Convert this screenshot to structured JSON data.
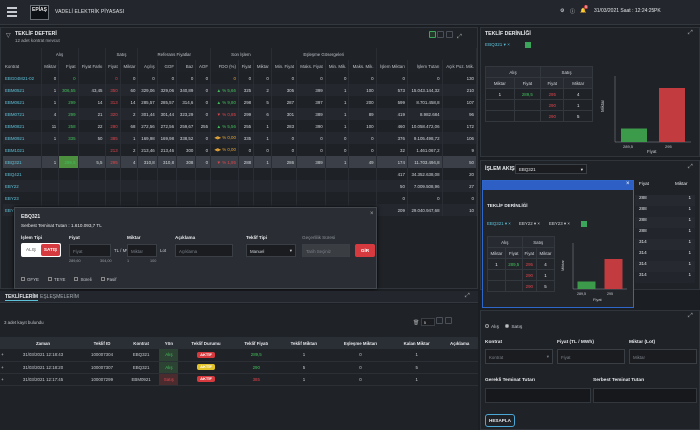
{
  "app": {
    "logo_lines": [
      "EPİAŞ",
      ""
    ],
    "title": "VADELİ ELEKTRİK PİYASASI",
    "notif_count": "5",
    "datetime": "31/03/2021 Saat : 12:24:25",
    "user": "PK"
  },
  "offer_book": {
    "title": "TEKLİF DEFTERİ",
    "subtitle": "12 adet kontrat mevcut",
    "group_headers": {
      "alis": "Alış",
      "satis": "Satış",
      "ref": "Referans Fiyatlar",
      "son_islem": "Son İşlem",
      "eslesme": "Eşleşme Gösergeleri"
    },
    "columns": [
      "Kontrat",
      "Miktar",
      "Fiyat",
      "Fiyat Farkı",
      "Fiyat",
      "Miktar",
      "Açılış",
      "GOF",
      "Baz",
      "AOF",
      "FDO (%)",
      "Fiyat",
      "Miktar",
      "Min. Fiyat",
      "Maks. Fiyat",
      "Min. Mik.",
      "Maks. Mik.",
      "İşlem Miktarı",
      "İşlem Tutarı",
      "Açık Poz. Mik."
    ],
    "rows": [
      {
        "k": "EBG04M21-02",
        "c": [
          "0",
          "0",
          "",
          "0",
          "0",
          "0",
          "0",
          "0",
          "0",
          "0",
          "0",
          "0",
          "0",
          "0",
          "0",
          "0",
          "0",
          "0",
          "130"
        ]
      },
      {
        "k": "EBM0521",
        "c": [
          "1",
          "306,55",
          "43,45",
          "350",
          "60",
          "329,06",
          "329,06",
          "340,89",
          "0",
          "▲ % 5,66",
          "325",
          "2",
          "305",
          "399",
          "1",
          "100",
          "573",
          "15.043.144,32",
          "210"
        ]
      },
      {
        "k": "EBM0621",
        "c": [
          "1",
          "299",
          "14",
          "313",
          "14",
          "285,57",
          "285,57",
          "314,6",
          "0",
          "▲ % 9,80",
          "298",
          "5",
          "287",
          "397",
          "1",
          "200",
          "599",
          "8.701.458,8",
          "107"
        ]
      },
      {
        "k": "EBM0721",
        "c": [
          "4",
          "299",
          "21",
          "320",
          "2",
          "301,44",
          "301,44",
          "323,29",
          "0",
          "▼ % 0,85",
          "299",
          "6",
          "301",
          "389",
          "1",
          "89",
          "419",
          "8.982.684",
          "96"
        ]
      },
      {
        "k": "EBM0821",
        "c": [
          "11",
          "258",
          "22",
          "280",
          "68",
          "272,56",
          "272,56",
          "259,67",
          "255",
          "▲ % 5,56",
          "255",
          "1",
          "283",
          "390",
          "1",
          "100",
          "460",
          "10.058.472,06",
          "172"
        ]
      },
      {
        "k": "EBM0921",
        "c": [
          "1",
          "335",
          "50",
          "385",
          "1",
          "169,98",
          "169,98",
          "338,52",
          "0",
          "◀▶ % 0,00",
          "335",
          "1",
          "0",
          "0",
          "0",
          "0",
          "376",
          "9.105.498,72",
          "106"
        ]
      },
      {
        "k": "EBM1021",
        "c": [
          "",
          "",
          "",
          "213",
          "2",
          "213,46",
          "213,46",
          "300",
          "0",
          "◀▶ % 0,00",
          "0",
          "0",
          "0",
          "0",
          "0",
          "0",
          "32",
          "1.461.067,2",
          "9"
        ]
      },
      {
        "k": "EBQ321",
        "c": [
          "1",
          "289,5",
          "5,5",
          "295",
          "4",
          "310,8",
          "310,8",
          "308",
          "0",
          "▼ % 1,95",
          "288",
          "1",
          "286",
          "389",
          "1",
          "49",
          "174",
          "11.703.494,8",
          "50"
        ]
      },
      {
        "k": "EBQ421",
        "c": [
          "",
          "",
          "",
          "",
          "",
          "",
          "",
          "",
          "",
          "",
          "",
          "",
          "",
          "",
          "",
          "",
          "417",
          "34.352.638,08",
          "20"
        ]
      },
      {
        "k": "EBY22",
        "c": [
          "",
          "",
          "",
          "",
          "",
          "",
          "",
          "",
          "",
          "",
          "",
          "",
          "",
          "",
          "",
          "",
          "50",
          "7.009.508,96",
          "27"
        ]
      },
      {
        "k": "EBY23",
        "c": [
          "",
          "",
          "",
          "",
          "",
          "",
          "",
          "",
          "",
          "",
          "",
          "",
          "",
          "",
          "",
          "",
          "0",
          "0",
          "0"
        ]
      },
      {
        "k": "EBY24",
        "c": [
          "",
          "",
          "",
          "",
          "",
          "",
          "",
          "",
          "",
          "",
          "",
          "",
          "",
          "",
          "",
          "",
          "209",
          "29.040.947,68",
          "10"
        ]
      }
    ]
  },
  "dialog": {
    "contract": "EBQ321",
    "collateral_label": "Serbest Teminat Tutarı : 1.610.093,7 TL",
    "islem_tipi_label": "İşlem Tipi",
    "alis": "ALIŞ",
    "satis": "SATIŞ",
    "fiyat_label": "Fiyat",
    "fiyat_placeholder": "Fiyat",
    "fiyat_unit": "TL / MWh",
    "fiyat_hint_left": "289,60",
    "fiyat_hint_right": "304,00",
    "miktar_label": "Miktar",
    "miktar_placeholder": "Miktar",
    "miktar_unit": "Lot",
    "miktar_hint_left": "1",
    "miktar_hint_right": "100",
    "aciklama_label": "Açıklama",
    "aciklama_placeholder": "Açıklama",
    "teklif_tipi_label": "Teklif Tipi",
    "teklif_tipi_value": "Manuel",
    "gecerlilik_label": "Geçerlilik Süresi",
    "gecerlilik_placeholder": "Tarih Seçiniz",
    "gir_button": "GİR",
    "checks": [
      "GFYE",
      "TEYE",
      "Süreli",
      "Pasif"
    ]
  },
  "bottom_tabs": {
    "tab1": "TEKLİFLERİM",
    "tab2": "EŞLEŞMELERİM"
  },
  "orders": {
    "count_label": "3 adet kayıt bulundu",
    "page_size": "5",
    "columns": [
      "Zaman",
      "Teklif ID",
      "Kontrat",
      "Yön",
      "Teklif Durumu",
      "Teklif Fiyatı",
      "Teklif Miktarı",
      "Eşleşme Miktarı",
      "Kalan Miktar",
      "Açıklama"
    ],
    "rows": [
      {
        "time": "31/03/2021 12:18:43",
        "id": "100007304",
        "kontrat": "EBQ321",
        "yon": "Alış",
        "yon_class": "green",
        "durum": "AKTİF",
        "durum_color": "#d63a3e",
        "fiyat": "289,5",
        "miktar": "1",
        "esl": "0",
        "kalan": "1"
      },
      {
        "time": "31/03/2021 12:18:20",
        "id": "100007307",
        "kontrat": "EBQ321",
        "yon": "Alış",
        "yon_class": "green",
        "durum": "AKTİF",
        "durum_color": "#e2c42a",
        "fiyat": "290",
        "miktar": "5",
        "esl": "0",
        "kalan": "5"
      },
      {
        "time": "31/03/2021 12:17:45",
        "id": "100007299",
        "kontrat": "EBM0921",
        "yon": "Satış",
        "yon_class": "red",
        "durum": "AKTİF",
        "durum_color": "#d63a3e",
        "fiyat": "385",
        "miktar": "1",
        "esl": "0",
        "kalan": "1"
      }
    ]
  },
  "depth": {
    "title": "TEKLİF DERİNLİĞİ",
    "contract": "EBQ321",
    "headers": {
      "alis": "Alış",
      "satis": "Satış",
      "miktar": "Miktar",
      "fiyat": "Fiyat"
    },
    "rows": [
      {
        "am": "1",
        "af": "289,5",
        "sf": "295",
        "sm": "4"
      },
      {
        "am": "",
        "af": "",
        "sf": "290",
        "sm": "1"
      },
      {
        "am": "",
        "af": "",
        "sf": "290",
        "sm": "5"
      }
    ],
    "chart_labels": {
      "y": "Miktar",
      "x": "Fiyat",
      "x1": "289,5",
      "x2": "295"
    }
  },
  "chart_data": {
    "type": "bar",
    "categories": [
      "289,5",
      "295"
    ],
    "series": [
      {
        "name": "Alış",
        "values": [
          1,
          0
        ],
        "color": "#3c9b4b"
      },
      {
        "name": "Satış",
        "values": [
          0,
          4
        ],
        "color": "#c23c3f"
      }
    ],
    "xlabel": "Fiyat",
    "ylabel": "Miktar"
  },
  "flow": {
    "title": "İŞLEM AKIŞI",
    "contract": "EBQ321",
    "columns": [
      "Fiyat",
      "Miktar"
    ],
    "rows": [
      [
        "288",
        "1"
      ],
      [
        "288",
        "1"
      ],
      [
        "288",
        "1"
      ],
      [
        "288",
        "1"
      ],
      [
        "314",
        "1"
      ],
      [
        "314",
        "1"
      ],
      [
        "314",
        "1"
      ],
      [
        "314",
        "1"
      ]
    ]
  },
  "mini_depth": {
    "title": "TEKLİF DERİNLİĞİ",
    "contracts": [
      "EBQ321",
      "EBY22",
      "EBY23"
    ],
    "headers": {
      "alis": "Alış",
      "satis": "Satış",
      "miktar": "Miktar",
      "fiyat": "Fiyat"
    },
    "rows": [
      {
        "am": "1",
        "af": "289,5",
        "sf": "295",
        "sm": "4"
      },
      {
        "am": "",
        "af": "",
        "sf": "290",
        "sm": "1"
      },
      {
        "am": "",
        "af": "",
        "sf": "290",
        "sm": "5"
      }
    ],
    "chart_labels": {
      "y": "Miktar",
      "x": "Fiyat",
      "x1": "289,5",
      "x2": "295"
    }
  },
  "order_entry": {
    "radio_alis": "Alış",
    "radio_satis": "Satış",
    "kontrat_label": "Kontrat",
    "kontrat_placeholder": "Kontrat",
    "fiyat_label": "Fiyat (TL / MWh)",
    "fiyat_placeholder": "Fiyat",
    "miktar_label": "Miktar (Lot)",
    "miktar_placeholder": "Miktar",
    "gerekli_label": "Gerekli Teminat Tutarı",
    "serbest_label": "Serbest Teminat Tutarı",
    "hesapla": "HESAPLA"
  }
}
